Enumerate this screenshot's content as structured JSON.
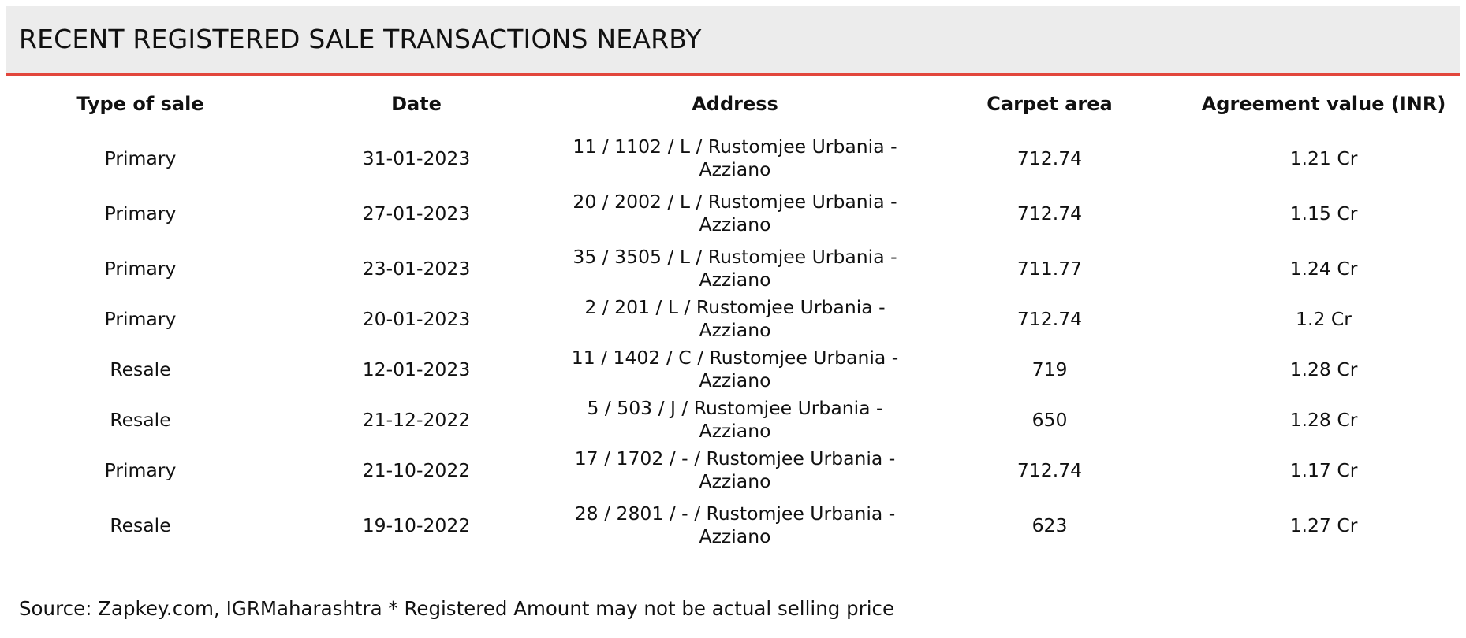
{
  "title": "RECENT REGISTERED SALE TRANSACTIONS NEARBY",
  "table": {
    "headers": {
      "type": "Type of sale",
      "date": "Date",
      "address": "Address",
      "area": "Carpet area",
      "value": "Agreement value (INR)"
    },
    "rows": [
      {
        "type": "Primary",
        "date": "31-01-2023",
        "address": "11 / 1102 / L / Rustomjee Urbania - Azziano",
        "area": "712.74",
        "value": "1.21 Cr"
      },
      {
        "type": "Primary",
        "date": "27-01-2023",
        "address": "20 / 2002 / L / Rustomjee Urbania - Azziano",
        "area": "712.74",
        "value": "1.15 Cr"
      },
      {
        "type": "Primary",
        "date": "23-01-2023",
        "address": "35 / 3505 / L / Rustomjee Urbania - Azziano",
        "area": "711.77",
        "value": "1.24 Cr"
      },
      {
        "type": "Primary",
        "date": "20-01-2023",
        "address": "2 / 201 / L / Rustomjee Urbania - Azziano",
        "area": "712.74",
        "value": "1.2 Cr"
      },
      {
        "type": "Resale",
        "date": "12-01-2023",
        "address": "11 / 1402 / C / Rustomjee Urbania - Azziano",
        "area": "719",
        "value": "1.28 Cr"
      },
      {
        "type": "Resale",
        "date": "21-12-2022",
        "address": "5 / 503 / J / Rustomjee Urbania - Azziano",
        "area": "650",
        "value": "1.28 Cr"
      },
      {
        "type": "Primary",
        "date": "21-10-2022",
        "address": "17 / 1702 / - / Rustomjee Urbania - Azziano",
        "area": "712.74",
        "value": "1.17 Cr"
      },
      {
        "type": "Resale",
        "date": "19-10-2022",
        "address": "28 / 2801 / - / Rustomjee Urbania - Azziano",
        "area": "623",
        "value": "1.27 Cr"
      }
    ]
  },
  "footer": {
    "source": "Source: Zapkey.com, IGRMaharashtra * Registered Amount may not be actual selling price"
  }
}
